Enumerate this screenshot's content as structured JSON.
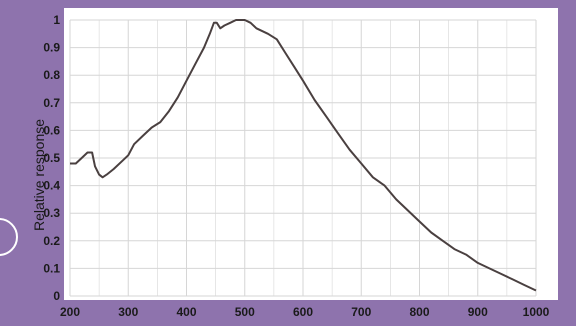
{
  "colors": {
    "background": "#8e73ad",
    "plot_fill": "#ffffff",
    "grid": "#d6d6d6",
    "line": "#4a4040",
    "text": "#1a1a1a"
  },
  "chart_data": {
    "type": "line",
    "title": "",
    "xlabel": "",
    "ylabel": "Relative response",
    "xlim": [
      200,
      1000
    ],
    "ylim": [
      0,
      1
    ],
    "grid": true,
    "x_ticks": [
      200,
      300,
      400,
      500,
      600,
      700,
      800,
      900,
      1000
    ],
    "x_tick_labels": [
      "200",
      "300",
      "400",
      "500",
      "600",
      "700",
      "800",
      "900",
      "1000"
    ],
    "y_ticks": [
      0,
      0.1,
      0.2,
      0.3,
      0.4,
      0.5,
      0.6,
      0.7,
      0.8,
      0.9,
      1
    ],
    "y_tick_labels": [
      "0",
      "0.1",
      "0.2",
      "0.3",
      "0.4",
      "0.5",
      "0.6",
      "0.7",
      "0.8",
      "0.9",
      "1"
    ],
    "series": [
      {
        "x": [
          200,
          210,
          220,
          230,
          238,
          243,
          250,
          256,
          263,
          275,
          290,
          300,
          310,
          325,
          340,
          355,
          370,
          385,
          400,
          415,
          430,
          440,
          447,
          452,
          458,
          465,
          475,
          485,
          490,
          500,
          510,
          520,
          540,
          555,
          570,
          585,
          600,
          620,
          640,
          660,
          680,
          700,
          720,
          740,
          760,
          780,
          800,
          820,
          840,
          860,
          880,
          900,
          920,
          940,
          960,
          980,
          1000
        ],
        "y": [
          0.48,
          0.48,
          0.5,
          0.52,
          0.52,
          0.47,
          0.44,
          0.43,
          0.44,
          0.46,
          0.49,
          0.51,
          0.55,
          0.58,
          0.61,
          0.63,
          0.67,
          0.72,
          0.78,
          0.84,
          0.9,
          0.95,
          0.99,
          0.99,
          0.97,
          0.98,
          0.99,
          1.0,
          1.0,
          1.0,
          0.99,
          0.97,
          0.95,
          0.93,
          0.88,
          0.83,
          0.78,
          0.71,
          0.65,
          0.59,
          0.53,
          0.48,
          0.43,
          0.4,
          0.35,
          0.31,
          0.27,
          0.23,
          0.2,
          0.17,
          0.15,
          0.12,
          0.1,
          0.08,
          0.06,
          0.04,
          0.02
        ]
      }
    ]
  }
}
